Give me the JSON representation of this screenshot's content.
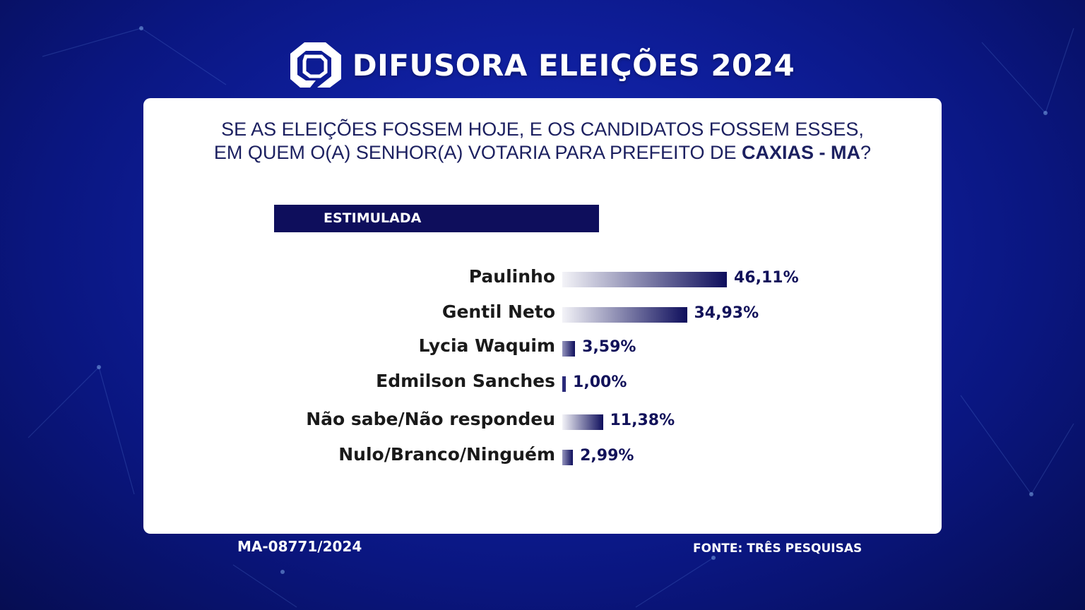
{
  "header": {
    "title": "DIFUSORA ELEIÇÕES 2024",
    "logo_icon": "difusora-logo-icon"
  },
  "question": {
    "line1": "SE AS ELEIÇÕES FOSSEM HOJE, E OS CANDIDATOS FOSSEM ESSES,",
    "line2_prefix": "EM QUEM O(A) SENHOR(A) VOTARIA PARA PREFEITO DE ",
    "line2_bold": "CAXIAS - MA",
    "line2_suffix": "?"
  },
  "tag": {
    "label": "ESTIMULADA"
  },
  "footer": {
    "registration": "MA-08771/2024",
    "source": "FONTE:  TRÊS PESQUISAS"
  },
  "colors": {
    "bar": "#0e0e5c",
    "background": "#0f1f9e",
    "text_dark": "#1a1a1a",
    "value_text": "#12125a"
  },
  "chart_data": {
    "type": "bar",
    "orientation": "horizontal",
    "categories": [
      "Paulinho",
      "Gentil Neto",
      "Lycia Waquim",
      "Edmilson Sanches",
      "Não sabe/Não respondeu",
      "Nulo/Branco/Ninguém"
    ],
    "values": [
      46.11,
      34.93,
      3.59,
      1.0,
      11.38,
      2.99
    ],
    "labels": [
      "46,11%",
      "34,93%",
      "3,59%",
      "1,00%",
      "11,38%",
      "2,99%"
    ],
    "title": "",
    "xlabel": "",
    "ylabel": "",
    "grid": false,
    "legend": "none"
  }
}
